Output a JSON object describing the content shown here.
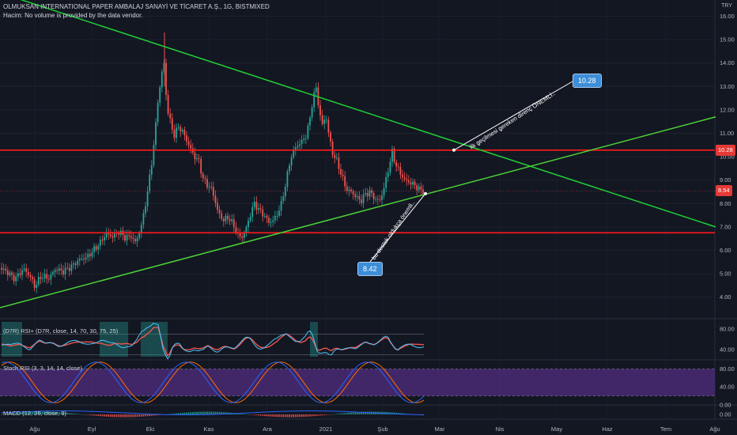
{
  "header": {
    "title": "OLMUKSAN INTERNATIONAL PAPER AMBALAJ SANAYİ VE TİCARET A.Ş., 1G, BISTMIXED",
    "volume_note": "Hacim: No volume is provided by the data vendor.",
    "currency": "TRY"
  },
  "colors": {
    "background": "#131722",
    "candle_up": "#26a69a",
    "candle_down": "#ef5350",
    "trend_line_down": "#1fd036",
    "trend_line_up": "#4cd137",
    "horizontal_line": "#ff1a1a",
    "callout": "#3d8ed8",
    "price_flag": "#e53935",
    "stoch_band": "#4a2a74",
    "stoch_k": "#2962ff",
    "stoch_d": "#ff6d00"
  },
  "price_levels": {
    "resistance": "10.28",
    "current": "8.54",
    "support": "8.42"
  },
  "annotations": {
    "resistance_note": "İlk geçilmesi gereken direnç ÖNEMLİ..",
    "support_note": "bu destek oldukça önemli.."
  },
  "panes": {
    "rsi_label": "(D7R) RSI+ (D7R, close, 14, 70, 30, 75, 25)",
    "stoch_label": "Stoch RSI (3, 3, 14, 14, close)",
    "macd_label": "MACD (12, 26, close, 9)"
  },
  "chart_data": [
    {
      "type": "candlestick",
      "title": "OLMUKSAN INTERNATIONAL PAPER AMBALAJ SANAYİ VE TİCARET A.Ş., 1G, BISTMIXED",
      "x_labels": [
        "Ağu",
        "Eyl",
        "Eki",
        "Kas",
        "Ara",
        "2021",
        "Şub",
        "Mar",
        "Nis",
        "May",
        "Haz",
        "Tem",
        "Ağu"
      ],
      "y_ticks": [
        "16.00",
        "15.00",
        "14.00",
        "13.00",
        "12.00",
        "11.00",
        "10.00",
        "9.00",
        "8.00",
        "7.00",
        "6.00",
        "5.00",
        "4.00"
      ],
      "ylim": [
        3.75,
        16.0
      ],
      "close_path": [
        [
          0,
          5.25
        ],
        [
          10,
          5.05
        ],
        [
          16,
          4.85
        ],
        [
          20,
          4.8
        ],
        [
          24,
          5.0
        ],
        [
          30,
          5.2
        ],
        [
          38,
          4.9
        ],
        [
          44,
          4.45
        ],
        [
          52,
          4.9
        ],
        [
          62,
          4.8
        ],
        [
          70,
          5.2
        ],
        [
          80,
          5.1
        ],
        [
          90,
          5.3
        ],
        [
          100,
          5.6
        ],
        [
          110,
          5.7
        ],
        [
          118,
          6.0
        ],
        [
          126,
          6.3
        ],
        [
          134,
          6.7
        ],
        [
          142,
          6.6
        ],
        [
          150,
          6.8
        ],
        [
          158,
          6.55
        ],
        [
          166,
          6.6
        ],
        [
          172,
          6.3
        ],
        [
          176,
          6.8
        ],
        [
          180,
          7.2
        ],
        [
          184,
          8.0
        ],
        [
          188,
          8.8
        ],
        [
          192,
          9.8
        ],
        [
          196,
          11.0
        ],
        [
          200,
          12.5
        ],
        [
          204,
          13.4
        ],
        [
          207,
          14.2
        ],
        [
          209,
          13.0
        ],
        [
          212,
          12.0
        ],
        [
          216,
          11.4
        ],
        [
          220,
          10.9
        ],
        [
          226,
          11.3
        ],
        [
          232,
          11.0
        ],
        [
          240,
          10.4
        ],
        [
          246,
          10.0
        ],
        [
          252,
          9.8
        ],
        [
          256,
          9.1
        ],
        [
          262,
          8.8
        ],
        [
          268,
          8.6
        ],
        [
          272,
          8.1
        ],
        [
          276,
          7.6
        ],
        [
          282,
          7.3
        ],
        [
          290,
          7.4
        ],
        [
          296,
          7.0
        ],
        [
          302,
          6.6
        ],
        [
          306,
          6.55
        ],
        [
          312,
          7.0
        ],
        [
          318,
          7.7
        ],
        [
          322,
          8.0
        ],
        [
          328,
          7.7
        ],
        [
          334,
          7.5
        ],
        [
          340,
          7.2
        ],
        [
          346,
          7.3
        ],
        [
          350,
          7.5
        ],
        [
          356,
          8.0
        ],
        [
          362,
          9.0
        ],
        [
          368,
          10.0
        ],
        [
          374,
          10.4
        ],
        [
          380,
          10.6
        ],
        [
          386,
          10.8
        ],
        [
          392,
          11.6
        ],
        [
          396,
          12.6
        ],
        [
          400,
          12.9
        ],
        [
          404,
          11.9
        ],
        [
          408,
          11.3
        ],
        [
          412,
          11.8
        ],
        [
          416,
          10.9
        ],
        [
          420,
          10.2
        ],
        [
          426,
          9.8
        ],
        [
          432,
          9.2
        ],
        [
          438,
          8.6
        ],
        [
          444,
          8.5
        ],
        [
          450,
          8.3
        ],
        [
          456,
          8.1
        ],
        [
          462,
          8.4
        ],
        [
          468,
          8.5
        ],
        [
          474,
          8.2
        ],
        [
          480,
          8.1
        ],
        [
          486,
          8.7
        ],
        [
          492,
          9.6
        ],
        [
          496,
          10.2
        ],
        [
          500,
          9.7
        ],
        [
          506,
          9.3
        ],
        [
          512,
          9.0
        ],
        [
          518,
          8.9
        ],
        [
          524,
          8.8
        ],
        [
          530,
          8.6
        ],
        [
          536,
          8.54
        ]
      ],
      "horizontal_lines": [
        10.28,
        6.75
      ],
      "reference_line": 8.54,
      "trend_lines": [
        {
          "name": "descending",
          "from": [
            0,
            17.0
          ],
          "to": [
            905,
            7.0
          ]
        },
        {
          "name": "ascending",
          "from": [
            0,
            3.55
          ],
          "to": [
            905,
            11.7
          ]
        }
      ],
      "callouts": [
        {
          "text": "10.28",
          "value": 10.28
        },
        {
          "text": "8.42",
          "value": 8.42
        }
      ],
      "price_flags": [
        {
          "text": "10.28",
          "value": 10.28,
          "color": "#e53935"
        },
        {
          "text": "8.54",
          "value": 8.54,
          "color": "#e53935"
        }
      ]
    },
    {
      "type": "line",
      "name": "(D7R) RSI+ (D7R, close, 14, 70, 30, 75, 25)",
      "y_ticks": [
        "80.00",
        "40.00"
      ],
      "ylim": [
        20,
        100
      ],
      "levels": [
        70,
        30
      ]
    },
    {
      "type": "line",
      "name": "Stoch RSI (3, 3, 14, 14, close)",
      "y_ticks": [
        "80.00",
        "40.00",
        "0.00"
      ],
      "ylim": [
        0,
        100
      ],
      "band": [
        20,
        80
      ]
    },
    {
      "type": "bar",
      "name": "MACD (12, 26, close, 9)",
      "y_ticks": [
        "0.00"
      ],
      "ylim": [
        -1,
        1
      ]
    }
  ]
}
